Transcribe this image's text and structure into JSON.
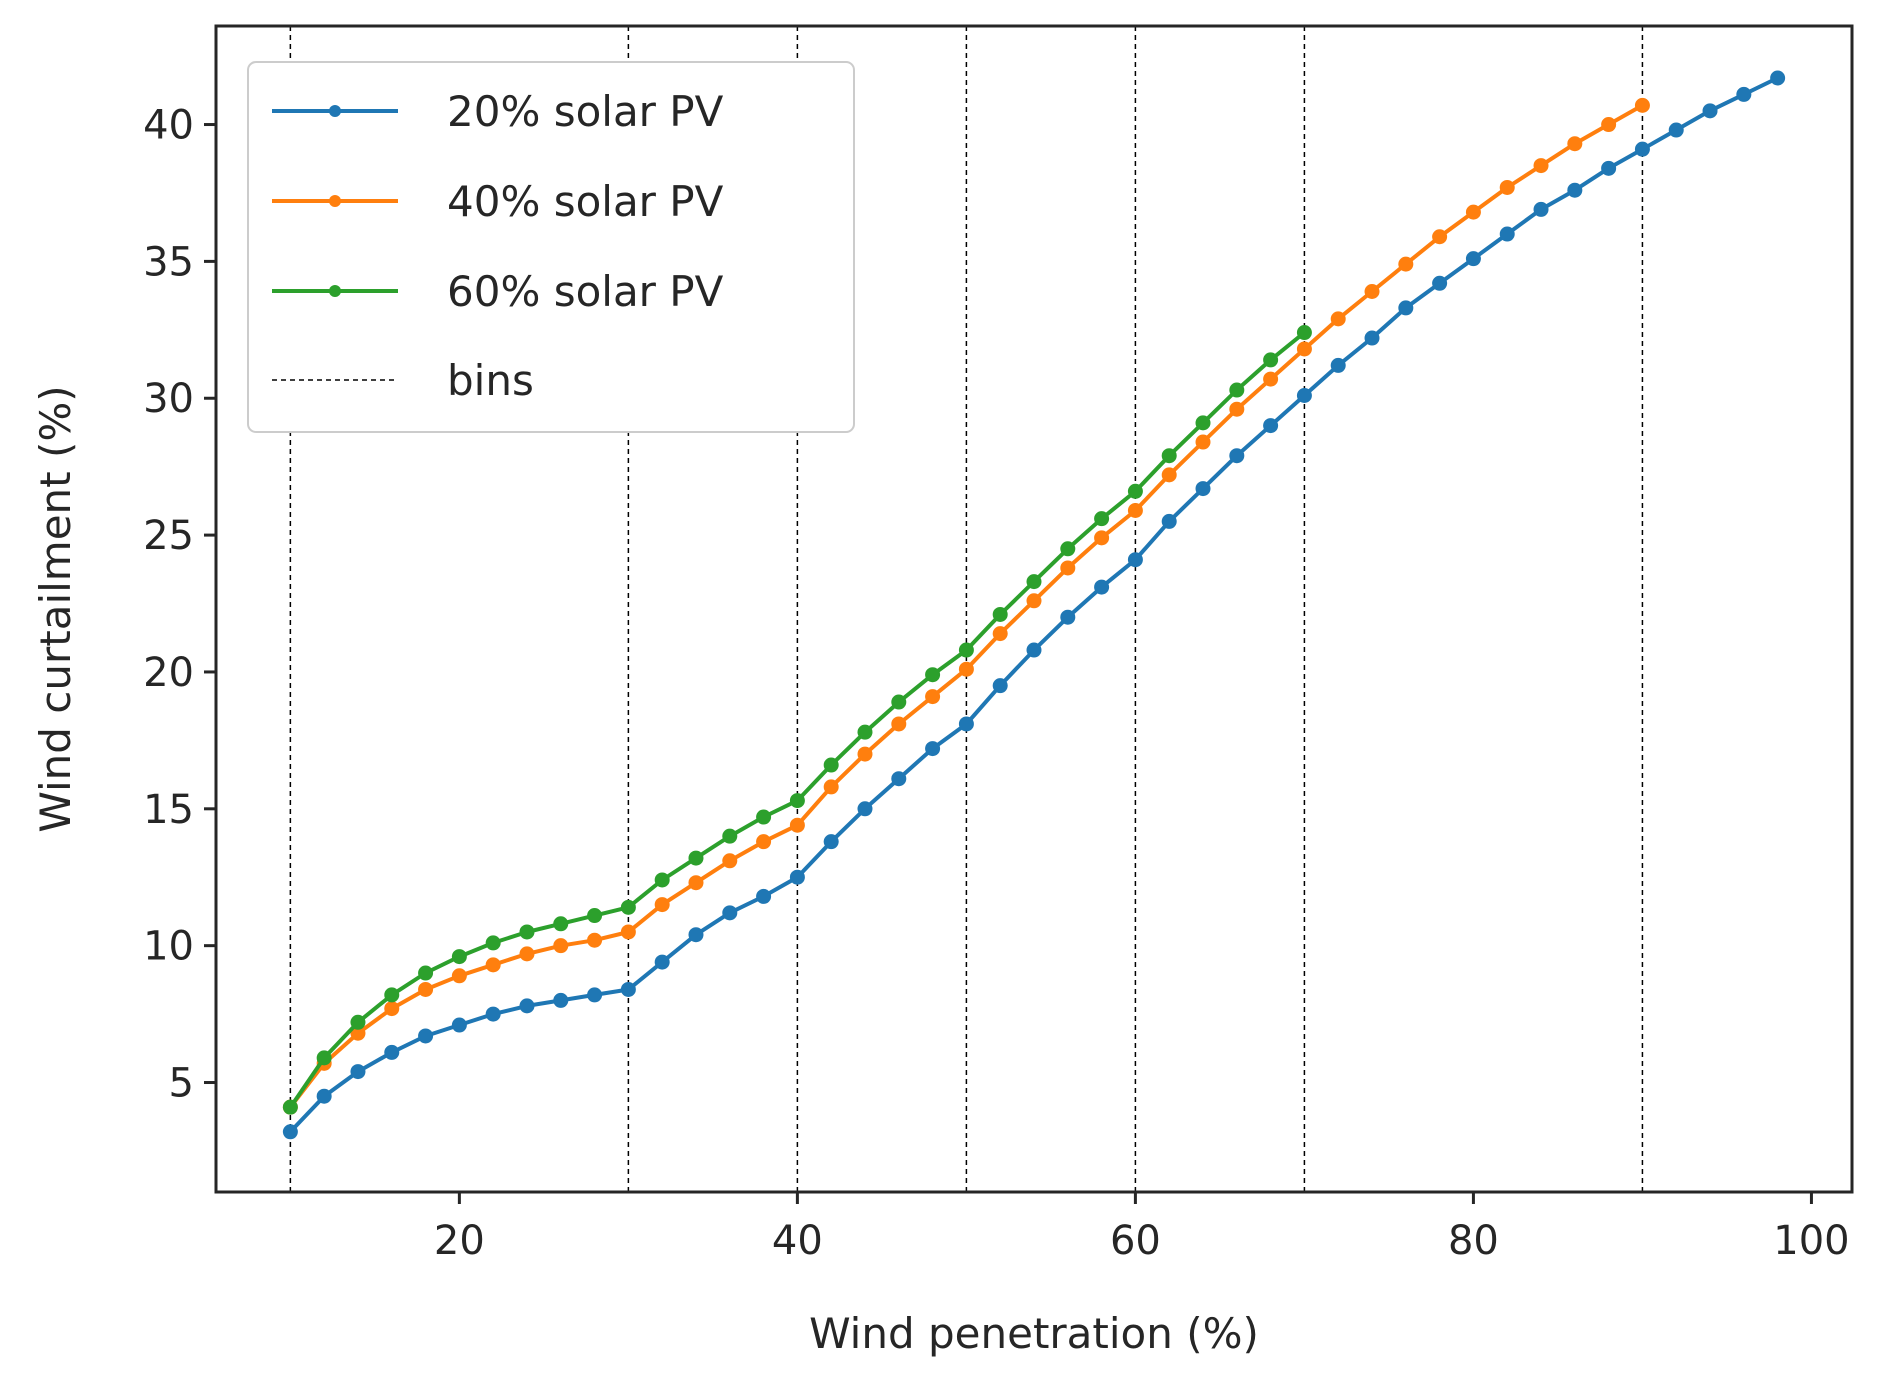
{
  "chart_data": {
    "type": "line",
    "title": "",
    "xlabel": "Wind penetration (%)",
    "ylabel": "Wind curtailment (%)",
    "xlim": [
      5.6,
      102.4
    ],
    "ylim": [
      1.0,
      43.6
    ],
    "xticks": [
      20,
      40,
      60,
      80,
      100
    ],
    "yticks": [
      5,
      10,
      15,
      20,
      25,
      30,
      35,
      40
    ],
    "xtick_labels": [
      "20",
      "40",
      "60",
      "80",
      "100"
    ],
    "ytick_labels": [
      "5",
      "10",
      "15",
      "20",
      "25",
      "30",
      "35",
      "40"
    ],
    "grid": false,
    "legend_position": "top-left",
    "bins": {
      "name": "bins",
      "x": [
        10,
        30,
        40,
        50,
        60,
        70,
        90
      ],
      "color": "#000000"
    },
    "series": [
      {
        "name": "20% solar PV",
        "color": "#1f77b4",
        "x": [
          10,
          12,
          14,
          16,
          18,
          20,
          22,
          24,
          26,
          28,
          30,
          32,
          34,
          36,
          38,
          40,
          42,
          44,
          46,
          48,
          50,
          52,
          54,
          56,
          58,
          60,
          62,
          64,
          66,
          68,
          70,
          72,
          74,
          76,
          78,
          80,
          82,
          84,
          86,
          88,
          90,
          92,
          94,
          96,
          98
        ],
        "values": [
          3.2,
          4.5,
          5.4,
          6.1,
          6.7,
          7.1,
          7.5,
          7.8,
          8.0,
          8.2,
          8.4,
          9.4,
          10.4,
          11.2,
          11.8,
          12.5,
          13.8,
          15.0,
          16.1,
          17.2,
          18.1,
          19.5,
          20.8,
          22.0,
          23.1,
          24.1,
          25.5,
          26.7,
          27.9,
          29.0,
          30.1,
          31.2,
          32.2,
          33.3,
          34.2,
          35.1,
          36.0,
          36.9,
          37.6,
          38.4,
          39.1,
          39.8,
          40.5,
          41.1,
          41.7
        ]
      },
      {
        "name": "40% solar PV",
        "color": "#ff7f0e",
        "x": [
          10,
          12,
          14,
          16,
          18,
          20,
          22,
          24,
          26,
          28,
          30,
          32,
          34,
          36,
          38,
          40,
          42,
          44,
          46,
          48,
          50,
          52,
          54,
          56,
          58,
          60,
          62,
          64,
          66,
          68,
          70,
          72,
          74,
          76,
          78,
          80,
          82,
          84,
          86,
          88,
          90
        ],
        "values": [
          4.1,
          5.7,
          6.8,
          7.7,
          8.4,
          8.9,
          9.3,
          9.7,
          10.0,
          10.2,
          10.5,
          11.5,
          12.3,
          13.1,
          13.8,
          14.4,
          15.8,
          17.0,
          18.1,
          19.1,
          20.1,
          21.4,
          22.6,
          23.8,
          24.9,
          25.9,
          27.2,
          28.4,
          29.6,
          30.7,
          31.8,
          32.9,
          33.9,
          34.9,
          35.9,
          36.8,
          37.7,
          38.5,
          39.3,
          40.0,
          40.7
        ]
      },
      {
        "name": "60% solar PV",
        "color": "#2ca02c",
        "x": [
          10,
          12,
          14,
          16,
          18,
          20,
          22,
          24,
          26,
          28,
          30,
          32,
          34,
          36,
          38,
          40,
          42,
          44,
          46,
          48,
          50,
          52,
          54,
          56,
          58,
          60,
          62,
          64,
          66,
          68,
          70
        ],
        "values": [
          4.1,
          5.9,
          7.2,
          8.2,
          9.0,
          9.6,
          10.1,
          10.5,
          10.8,
          11.1,
          11.4,
          12.4,
          13.2,
          14.0,
          14.7,
          15.3,
          16.6,
          17.8,
          18.9,
          19.9,
          20.8,
          22.1,
          23.3,
          24.5,
          25.6,
          26.6,
          27.9,
          29.1,
          30.3,
          31.4,
          32.4
        ]
      }
    ]
  }
}
